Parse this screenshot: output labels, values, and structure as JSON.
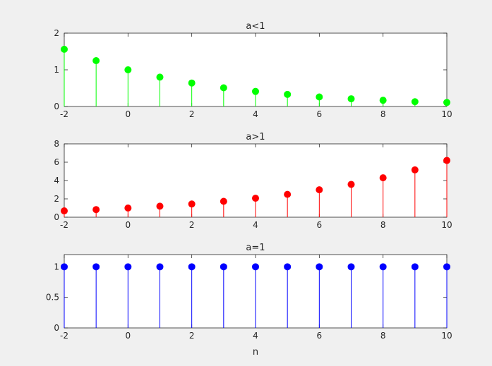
{
  "chart_data": [
    {
      "type": "stem",
      "title": "a<1",
      "xlabel": "",
      "ylabel": "",
      "xlim": [
        -2,
        10
      ],
      "ylim": [
        0,
        2
      ],
      "xticks": [
        "-2",
        "0",
        "2",
        "4",
        "6",
        "8",
        "10"
      ],
      "yticks": [
        "0",
        "1",
        "2"
      ],
      "color": "#00ff00",
      "x": [
        -2,
        -1,
        0,
        1,
        2,
        3,
        4,
        5,
        6,
        7,
        8,
        9,
        10
      ],
      "values": [
        1.56,
        1.25,
        1.0,
        0.8,
        0.64,
        0.51,
        0.41,
        0.33,
        0.26,
        0.21,
        0.17,
        0.13,
        0.11
      ]
    },
    {
      "type": "stem",
      "title": "a>1",
      "xlabel": "",
      "ylabel": "",
      "xlim": [
        -2,
        10
      ],
      "ylim": [
        0,
        8
      ],
      "xticks": [
        "-2",
        "0",
        "2",
        "4",
        "6",
        "8",
        "10"
      ],
      "yticks": [
        "0",
        "2",
        "4",
        "6",
        "8"
      ],
      "color": "#ff0000",
      "x": [
        -2,
        -1,
        0,
        1,
        2,
        3,
        4,
        5,
        6,
        7,
        8,
        9,
        10
      ],
      "values": [
        0.69,
        0.83,
        1.0,
        1.2,
        1.44,
        1.73,
        2.07,
        2.49,
        2.99,
        3.58,
        4.3,
        5.16,
        6.19
      ]
    },
    {
      "type": "stem",
      "title": "a=1",
      "xlabel": "n",
      "ylabel": "",
      "xlim": [
        -2,
        10
      ],
      "ylim": [
        0,
        1.2
      ],
      "xticks": [
        "-2",
        "0",
        "2",
        "4",
        "6",
        "8",
        "10"
      ],
      "yticks": [
        "0",
        "0.5",
        "1"
      ],
      "color": "#0000ff",
      "x": [
        -2,
        -1,
        0,
        1,
        2,
        3,
        4,
        5,
        6,
        7,
        8,
        9,
        10
      ],
      "values": [
        1,
        1,
        1,
        1,
        1,
        1,
        1,
        1,
        1,
        1,
        1,
        1,
        1
      ]
    }
  ]
}
